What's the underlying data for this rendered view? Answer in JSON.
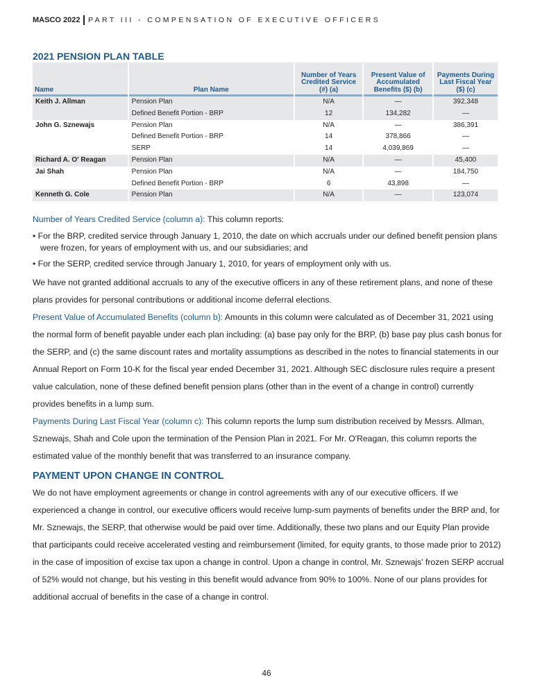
{
  "header": {
    "brand": "MASCO 2022",
    "section": "PART III - COMPENSATION OF EXECUTIVE OFFICERS"
  },
  "table": {
    "title": "2021 PENSION PLAN TABLE",
    "columns": [
      "Name",
      "Plan Name",
      "Number of Years Credited Service (#) (a)",
      "Present Value of Accumulated Benefits ($) (b)",
      "Payments During Last Fiscal Year ($) (c)"
    ],
    "rows": [
      [
        "Keith J. Allman",
        "Pension Plan",
        "N/A",
        "—",
        "392,348"
      ],
      [
        "",
        "Defined Benefit Portion - BRP",
        "12",
        "134,282",
        "—"
      ],
      [
        "John G. Sznewajs",
        "Pension Plan",
        "N/A",
        "—",
        "386,391"
      ],
      [
        "",
        "Defined Benefit Portion - BRP",
        "14",
        "378,866",
        "—"
      ],
      [
        "",
        "SERP",
        "14",
        "4,039,869",
        "—"
      ],
      [
        "Richard A. O' Reagan",
        "Pension Plan",
        "N/A",
        "—",
        "45,400"
      ],
      [
        "Jai Shah",
        "Pension Plan",
        "N/A",
        "—",
        "184,750"
      ],
      [
        "",
        "Defined Benefit Portion - BRP",
        "6",
        "43,898",
        "—"
      ],
      [
        "Kenneth G. Cole",
        "Pension Plan",
        "N/A",
        "—",
        "123,074"
      ]
    ]
  },
  "body": {
    "p1_label": "Number of Years Credited Service (column a):",
    "p1_text": " This column reports:",
    "b1": "• For the BRP, credited service through January 1, 2010, the date on which accruals under our defined benefit pension plans were frozen, for years of employment with us, and our subsidiaries; and",
    "b2": "• For the SERP, credited service through January 1, 2010, for years of employment only with us.",
    "p2": "We have not granted additional accruals to any of the executive officers in any of these retirement plans, and none of these plans provides for personal contributions or additional income deferral elections.",
    "p3_label": "Present Value of Accumulated Benefits (column b):",
    "p3_text": " Amounts in this column were calculated as of December 31, 2021 using the normal form of benefit payable under each plan including: (a) base pay only for the BRP, (b) base pay plus cash bonus for the SERP, and (c) the same discount rates and mortality assumptions as described in the notes to financial statements in our Annual Report on Form 10-K for the fiscal year ended December 31, 2021. Although SEC disclosure rules require a present value calculation, none of these defined benefit pension plans (other than in the event of a change in control) currently provides benefits in a lump sum.",
    "p4_label": "Payments During Last Fiscal Year (column c):",
    "p4_text": " This column reports the lump sum distribution received by Messrs. Allman, Sznewajs, Shah and Cole upon the termination of the Pension Plan in 2021. For Mr. O'Reagan, this column reports the estimated value of the monthly benefit that was transferred to an insurance company.",
    "h2": "PAYMENT UPON CHANGE IN CONTROL",
    "p5": "We do not have employment agreements or change in control agreements with any of our executive officers. If we experienced a change in control, our executive officers would receive lump-sum payments of benefits under the BRP and, for Mr. Sznewajs, the SERP, that otherwise would be paid over time. Additionally, these two plans and our Equity Plan provide that participants could receive accelerated vesting and reimbursement (limited, for equity grants, to those made prior to 2012) in the case of imposition of excise tax upon a change in control. Upon a change in control, Mr. Sznewajs' frozen SERP accrual of 52% would not change, but his vesting in this benefit would advance from 90% to 100%. None of our plans provides for additional accrual of benefits in the case of a change in control."
  },
  "page_number": "46"
}
